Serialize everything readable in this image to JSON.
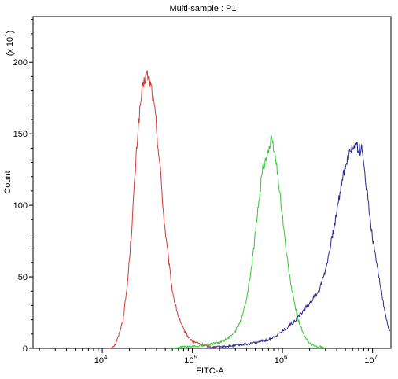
{
  "chart_data": {
    "type": "line",
    "title": "Multi-sample : P1",
    "xlabel": "FITC-A",
    "ylabel": "Count",
    "y_multiplier": {
      "prefix": "(x 10",
      "exponent": "1",
      "suffix": ")"
    },
    "x_scale": "log",
    "xlim": [
      1700,
      16000000
    ],
    "ylim": [
      0,
      232
    ],
    "grid": false,
    "x_ticks": [
      {
        "value": 10000,
        "base": "10",
        "exp": "4"
      },
      {
        "value": 100000,
        "base": "10",
        "exp": "5"
      },
      {
        "value": 1000000,
        "base": "10",
        "exp": "6"
      },
      {
        "value": 10000000,
        "base": "10",
        "exp": "7"
      }
    ],
    "y_ticks": [
      {
        "value": 0,
        "label": "0"
      },
      {
        "value": 50,
        "label": "50"
      },
      {
        "value": 100,
        "label": "100"
      },
      {
        "value": 150,
        "label": "150"
      },
      {
        "value": 200,
        "label": "200"
      }
    ],
    "series": [
      {
        "color": "#d43a3a",
        "x": [
          12000,
          13000,
          14000,
          15000,
          17000,
          19000,
          21000,
          23000,
          25000,
          27000,
          29000,
          31000,
          33000,
          35000,
          37000,
          39000,
          42000,
          45000,
          48000,
          52000,
          56000,
          60000,
          65000,
          70000,
          76000,
          82000,
          90000,
          100000,
          110000,
          125000,
          140000,
          160000,
          180000,
          200000
        ],
        "y": [
          0,
          1,
          3,
          8,
          20,
          45,
          80,
          120,
          155,
          175,
          186,
          192,
          188,
          183,
          172,
          162,
          138,
          118,
          92,
          72,
          55,
          40,
          30,
          22,
          16,
          12,
          8,
          5,
          4,
          3,
          2,
          1,
          1,
          0
        ]
      },
      {
        "color": "#35c735",
        "x": [
          60000,
          80000,
          100000,
          130000,
          160000,
          200000,
          250000,
          300000,
          350000,
          400000,
          450000,
          500000,
          550000,
          600000,
          650000,
          700000,
          750000,
          800000,
          850000,
          900000,
          1000000,
          1100000,
          1200000,
          1350000,
          1500000,
          1700000,
          1900000,
          2100000,
          2400000,
          2700000,
          3000000
        ],
        "y": [
          0,
          1,
          1,
          2,
          3,
          4,
          7,
          12,
          20,
          35,
          55,
          80,
          105,
          125,
          133,
          138,
          145,
          140,
          130,
          118,
          92,
          68,
          50,
          32,
          20,
          10,
          5,
          3,
          1,
          1,
          0
        ]
      },
      {
        "color": "#2b2b8c",
        "x": [
          130000,
          200000,
          300000,
          400000,
          500000,
          700000,
          900000,
          1100000,
          1400000,
          1800000,
          2200000,
          2600000,
          3000000,
          3500000,
          4000000,
          4500000,
          5000000,
          5500000,
          6000000,
          6500000,
          7000000,
          7500000,
          8000000,
          8700000,
          9500000,
          10500000,
          11500000,
          12500000,
          13500000,
          14500000,
          15500000
        ],
        "y": [
          0,
          1,
          2,
          3,
          4,
          6,
          10,
          14,
          20,
          28,
          35,
          42,
          55,
          75,
          95,
          115,
          128,
          136,
          140,
          145,
          138,
          140,
          128,
          110,
          88,
          68,
          55,
          40,
          28,
          18,
          12
        ]
      }
    ]
  }
}
